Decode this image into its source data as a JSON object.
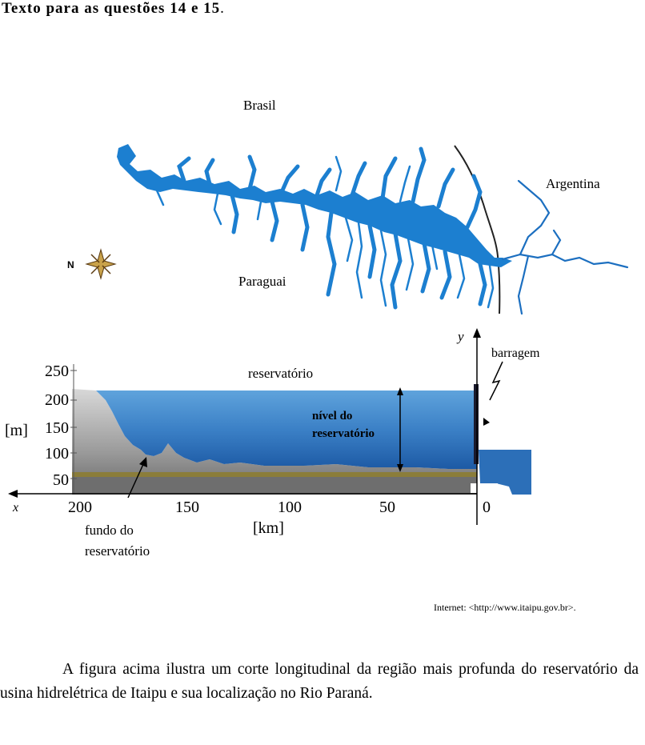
{
  "heading": {
    "bold_text": "Texto para as questões 14 e 15",
    "suffix": "."
  },
  "map": {
    "labels": {
      "brasil": "Brasil",
      "argentina": "Argentina",
      "paraguai": "Paraguai",
      "compass_letter": "N"
    },
    "colors": {
      "water": "#1c7fd0",
      "border": "#222222"
    }
  },
  "profile": {
    "y_axis_unit": "[m]",
    "y_axis_name": "y",
    "y_ticks": [
      "250",
      "200",
      "150",
      "100",
      "50"
    ],
    "x_axis_name": "x",
    "x_ticks": [
      "200",
      "150",
      "100",
      "50",
      "0"
    ],
    "x_axis_unit": "[km]",
    "labels": {
      "reservatorio": "reservatório",
      "nivel": [
        "nível do",
        "reservatório"
      ],
      "barragem": "barragem",
      "fundo": [
        "fundo do",
        "reservatório"
      ]
    },
    "colors": {
      "water_top": "#4a8fcf",
      "water_bottom": "#1a5fa8",
      "ground": "#8a8a8a",
      "sediment": "#8b7d3a"
    }
  },
  "source": "Internet: <http://www.itaipu.gov.br>.",
  "paragraph": "A figura acima ilustra um corte longitudinal da região mais profunda do reservatório da usina hidrelétrica de Itaipu e sua localização no Rio Paraná."
}
